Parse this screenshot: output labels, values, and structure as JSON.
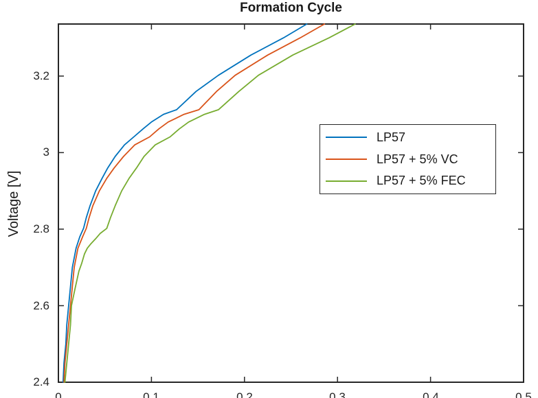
{
  "title": "Formation Cycle",
  "axes": {
    "ylabel": "Voltage [V]",
    "y_tick_labels": [
      "3.2",
      "3",
      "2.8",
      "2.6",
      "2.4"
    ],
    "x_tick_labels": [
      "0",
      "0.1",
      "0.2",
      "0.3",
      "0.4",
      "0.5"
    ]
  },
  "legend": {
    "entries": [
      {
        "label": "LP57",
        "color": "#0072BD"
      },
      {
        "label": "LP57 + 5% VC",
        "color": "#D95319"
      },
      {
        "label": "LP57 + 5% FEC",
        "color": "#77AC30"
      }
    ]
  },
  "colors": {
    "axis": "#262626",
    "background": "#ffffff",
    "series_blue": "#0072BD",
    "series_orange": "#D95319",
    "series_green": "#77AC30"
  },
  "chart_data": {
    "type": "line",
    "title": "Formation Cycle",
    "xlabel": "",
    "ylabel": "Voltage [V]",
    "xlim": [
      0,
      0.5
    ],
    "ylim": [
      2.4,
      3.336
    ],
    "x_tick_values": [
      0,
      0.1,
      0.2,
      0.3,
      0.4,
      0.5
    ],
    "y_tick_values": [
      2.4,
      2.6,
      2.8,
      3.0,
      3.2
    ],
    "grid": false,
    "legend_position": "middle-right",
    "series": [
      {
        "name": "LP57",
        "color": "#0072BD",
        "points": [
          [
            0.005,
            2.4
          ],
          [
            0.006,
            2.45
          ],
          [
            0.008,
            2.5
          ],
          [
            0.009,
            2.55
          ],
          [
            0.011,
            2.6
          ],
          [
            0.013,
            2.65
          ],
          [
            0.015,
            2.7
          ],
          [
            0.019,
            2.75
          ],
          [
            0.023,
            2.78
          ],
          [
            0.027,
            2.802
          ],
          [
            0.03,
            2.83
          ],
          [
            0.034,
            2.861
          ],
          [
            0.04,
            2.9
          ],
          [
            0.047,
            2.933
          ],
          [
            0.053,
            2.96
          ],
          [
            0.061,
            2.99
          ],
          [
            0.071,
            3.02
          ],
          [
            0.081,
            3.041
          ],
          [
            0.091,
            3.062
          ],
          [
            0.1,
            3.08
          ],
          [
            0.113,
            3.1
          ],
          [
            0.127,
            3.112
          ],
          [
            0.148,
            3.16
          ],
          [
            0.172,
            3.202
          ],
          [
            0.207,
            3.255
          ],
          [
            0.242,
            3.3
          ],
          [
            0.267,
            3.336
          ]
        ]
      },
      {
        "name": "LP57 + 5% VC",
        "color": "#D95319",
        "points": [
          [
            0.006,
            2.4
          ],
          [
            0.007,
            2.45
          ],
          [
            0.009,
            2.5
          ],
          [
            0.011,
            2.55
          ],
          [
            0.013,
            2.6
          ],
          [
            0.015,
            2.65
          ],
          [
            0.017,
            2.7
          ],
          [
            0.021,
            2.75
          ],
          [
            0.026,
            2.78
          ],
          [
            0.03,
            2.802
          ],
          [
            0.033,
            2.83
          ],
          [
            0.037,
            2.861
          ],
          [
            0.044,
            2.9
          ],
          [
            0.052,
            2.933
          ],
          [
            0.06,
            2.96
          ],
          [
            0.07,
            2.99
          ],
          [
            0.082,
            3.02
          ],
          [
            0.098,
            3.041
          ],
          [
            0.108,
            3.062
          ],
          [
            0.118,
            3.08
          ],
          [
            0.135,
            3.1
          ],
          [
            0.151,
            3.112
          ],
          [
            0.17,
            3.16
          ],
          [
            0.19,
            3.202
          ],
          [
            0.225,
            3.255
          ],
          [
            0.26,
            3.3
          ],
          [
            0.286,
            3.336
          ]
        ]
      },
      {
        "name": "LP57 + 5% FEC",
        "color": "#77AC30",
        "points": [
          [
            0.007,
            2.4
          ],
          [
            0.009,
            2.45
          ],
          [
            0.011,
            2.5
          ],
          [
            0.013,
            2.55
          ],
          [
            0.014,
            2.6
          ],
          [
            0.018,
            2.646
          ],
          [
            0.022,
            2.69
          ],
          [
            0.025,
            2.71
          ],
          [
            0.028,
            2.735
          ],
          [
            0.031,
            2.75
          ],
          [
            0.035,
            2.762
          ],
          [
            0.04,
            2.775
          ],
          [
            0.045,
            2.789
          ],
          [
            0.052,
            2.802
          ],
          [
            0.056,
            2.83
          ],
          [
            0.061,
            2.861
          ],
          [
            0.068,
            2.9
          ],
          [
            0.076,
            2.933
          ],
          [
            0.084,
            2.96
          ],
          [
            0.092,
            2.99
          ],
          [
            0.104,
            3.02
          ],
          [
            0.12,
            3.041
          ],
          [
            0.13,
            3.062
          ],
          [
            0.14,
            3.08
          ],
          [
            0.157,
            3.1
          ],
          [
            0.172,
            3.112
          ],
          [
            0.194,
            3.16
          ],
          [
            0.215,
            3.202
          ],
          [
            0.252,
            3.255
          ],
          [
            0.291,
            3.3
          ],
          [
            0.319,
            3.336
          ]
        ]
      }
    ]
  }
}
